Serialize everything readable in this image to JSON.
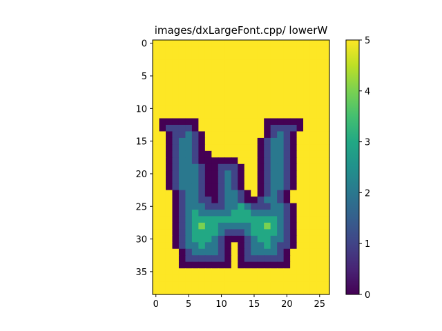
{
  "chart_data": {
    "type": "heatmap",
    "title": "images/dxLargeFont.cpp/ lowerW",
    "colormap": "viridis",
    "n_rows": 39,
    "n_cols": 27,
    "vmin": 0,
    "vmax": 5,
    "background_value": 5,
    "x_ticks": [
      0,
      5,
      10,
      15,
      20,
      25
    ],
    "y_ticks": [
      0,
      5,
      10,
      15,
      20,
      25,
      30,
      35
    ],
    "colorbar_ticks": [
      0,
      1,
      2,
      3,
      4,
      5
    ],
    "rows": [
      {
        "r": 0,
        "start": 0,
        "vals": []
      },
      {
        "r": 1,
        "start": 0,
        "vals": []
      },
      {
        "r": 2,
        "start": 0,
        "vals": []
      },
      {
        "r": 3,
        "start": 0,
        "vals": []
      },
      {
        "r": 4,
        "start": 0,
        "vals": []
      },
      {
        "r": 5,
        "start": 0,
        "vals": []
      },
      {
        "r": 6,
        "start": 0,
        "vals": []
      },
      {
        "r": 7,
        "start": 0,
        "vals": []
      },
      {
        "r": 8,
        "start": 0,
        "vals": []
      },
      {
        "r": 9,
        "start": 0,
        "vals": []
      },
      {
        "r": 10,
        "start": 0,
        "vals": []
      },
      {
        "r": 11,
        "start": 0,
        "vals": []
      },
      {
        "r": 12,
        "start": 1,
        "vals": [
          0,
          0,
          0,
          0,
          0,
          0
        ]
      },
      {
        "r": 12,
        "start": 17,
        "vals": [
          0,
          0,
          0,
          0,
          0,
          0
        ]
      },
      {
        "r": 13,
        "start": 1,
        "vals": [
          0,
          1,
          1,
          1,
          1,
          0
        ]
      },
      {
        "r": 13,
        "start": 17,
        "vals": [
          0,
          1,
          1,
          1,
          1,
          0
        ]
      },
      {
        "r": 14,
        "start": 2,
        "vals": [
          0,
          1,
          1,
          2,
          1,
          0
        ]
      },
      {
        "r": 14,
        "start": 17,
        "vals": [
          0,
          1,
          2,
          1,
          0
        ]
      },
      {
        "r": 15,
        "start": 2,
        "vals": [
          0,
          1,
          2,
          2,
          1,
          0
        ]
      },
      {
        "r": 15,
        "start": 16,
        "vals": [
          0,
          1,
          2,
          2,
          1,
          0
        ]
      },
      {
        "r": 16,
        "start": 2,
        "vals": [
          0,
          1,
          2,
          2,
          1,
          0
        ]
      },
      {
        "r": 16,
        "start": 16,
        "vals": [
          0,
          1,
          2,
          2,
          1,
          0
        ]
      },
      {
        "r": 17,
        "start": 2,
        "vals": [
          0,
          1,
          2,
          2,
          1,
          0,
          0
        ]
      },
      {
        "r": 17,
        "start": 16,
        "vals": [
          0,
          1,
          2,
          2,
          1,
          0
        ]
      },
      {
        "r": 18,
        "start": 2,
        "vals": [
          0,
          1,
          2,
          2,
          1,
          0,
          0
        ]
      },
      {
        "r": 18,
        "start": 9,
        "vals": [
          0,
          0,
          0,
          0
        ]
      },
      {
        "r": 18,
        "start": 16,
        "vals": [
          0,
          1,
          2,
          2,
          1,
          0
        ]
      },
      {
        "r": 19,
        "start": 2,
        "vals": [
          0,
          1,
          2,
          2,
          2,
          1,
          0
        ]
      },
      {
        "r": 19,
        "start": 9,
        "vals": [
          0,
          1,
          1,
          1,
          0
        ]
      },
      {
        "r": 19,
        "start": 16,
        "vals": [
          0,
          1,
          2,
          2,
          1,
          0
        ]
      },
      {
        "r": 20,
        "start": 2,
        "vals": [
          0,
          1,
          2,
          2,
          2,
          1,
          0
        ]
      },
      {
        "r": 20,
        "start": 9,
        "vals": [
          0,
          1,
          2,
          1,
          0
        ]
      },
      {
        "r": 20,
        "start": 16,
        "vals": [
          0,
          1,
          2,
          2,
          1,
          0
        ]
      },
      {
        "r": 21,
        "start": 2,
        "vals": [
          0,
          1,
          2,
          2,
          2,
          1,
          0
        ]
      },
      {
        "r": 21,
        "start": 9,
        "vals": [
          0,
          1,
          2,
          1,
          0
        ]
      },
      {
        "r": 21,
        "start": 16,
        "vals": [
          0,
          1,
          2,
          2,
          1,
          0
        ]
      },
      {
        "r": 22,
        "start": 2,
        "vals": [
          0,
          1,
          2,
          2,
          2,
          1,
          0
        ]
      },
      {
        "r": 22,
        "start": 9,
        "vals": [
          0,
          1,
          2,
          1,
          0
        ]
      },
      {
        "r": 22,
        "start": 16,
        "vals": [
          0,
          1,
          2,
          2,
          1,
          0
        ]
      },
      {
        "r": 23,
        "start": 3,
        "vals": [
          0,
          1,
          2,
          2,
          1,
          0
        ]
      },
      {
        "r": 23,
        "start": 9,
        "vals": [
          0,
          1,
          2,
          2,
          1,
          0
        ]
      },
      {
        "r": 23,
        "start": 16,
        "vals": [
          0,
          1,
          2,
          1,
          0
        ]
      },
      {
        "r": 24,
        "start": 3,
        "vals": [
          0,
          1,
          2,
          2,
          1,
          1,
          0
        ]
      },
      {
        "r": 24,
        "start": 9,
        "vals": [
          0,
          1,
          2,
          2,
          1,
          0
        ]
      },
      {
        "r": 24,
        "start": 15,
        "vals": [
          0,
          1,
          2,
          2,
          1,
          0
        ]
      },
      {
        "r": 25,
        "start": 3,
        "vals": [
          0,
          1,
          2,
          2,
          2,
          1,
          1,
          1,
          2,
          2,
          3,
          2,
          1,
          1,
          1,
          2,
          2,
          1,
          0
        ]
      },
      {
        "r": 26,
        "start": 3,
        "vals": [
          0,
          1,
          2,
          3,
          2,
          2,
          2,
          2,
          2,
          3,
          3,
          3,
          2,
          2,
          2,
          2,
          2,
          1,
          0
        ]
      },
      {
        "r": 27,
        "start": 3,
        "vals": [
          0,
          1,
          2,
          3,
          3,
          3,
          3,
          3,
          3,
          3,
          3,
          3,
          3,
          3,
          3,
          3,
          2,
          1,
          0
        ]
      },
      {
        "r": 28,
        "start": 3,
        "vals": [
          0,
          1,
          2,
          3,
          4,
          3,
          3,
          2,
          2,
          2,
          2,
          2,
          3,
          3,
          4,
          3,
          2,
          1,
          0
        ]
      },
      {
        "r": 29,
        "start": 3,
        "vals": [
          0,
          1,
          2,
          3,
          3,
          3,
          3,
          2,
          1,
          1,
          1,
          2,
          3,
          3,
          3,
          3,
          2,
          1,
          0
        ]
      },
      {
        "r": 30,
        "start": 3,
        "vals": [
          0,
          1,
          2,
          3,
          3,
          3,
          2,
          1,
          0,
          0,
          0,
          1,
          2,
          3,
          3,
          2,
          2,
          1,
          0
        ]
      },
      {
        "r": 31,
        "start": 3,
        "vals": [
          0,
          1,
          2,
          2,
          3,
          2,
          2,
          1,
          0
        ]
      },
      {
        "r": 31,
        "start": 13,
        "vals": [
          0,
          1,
          2,
          2,
          3,
          2,
          1,
          1,
          0
        ]
      },
      {
        "r": 32,
        "start": 4,
        "vals": [
          0,
          1,
          2,
          2,
          2,
          2,
          1,
          0
        ]
      },
      {
        "r": 32,
        "start": 13,
        "vals": [
          0,
          1,
          2,
          2,
          2,
          2,
          1,
          0
        ]
      },
      {
        "r": 33,
        "start": 4,
        "vals": [
          0,
          1,
          1,
          1,
          1,
          1,
          1,
          0
        ]
      },
      {
        "r": 33,
        "start": 13,
        "vals": [
          0,
          1,
          1,
          1,
          1,
          1,
          1,
          0
        ]
      },
      {
        "r": 34,
        "start": 4,
        "vals": [
          0,
          0,
          0,
          0,
          0,
          0,
          0,
          0
        ]
      },
      {
        "r": 34,
        "start": 13,
        "vals": [
          0,
          0,
          0,
          0,
          0,
          0,
          0,
          0
        ]
      }
    ]
  }
}
